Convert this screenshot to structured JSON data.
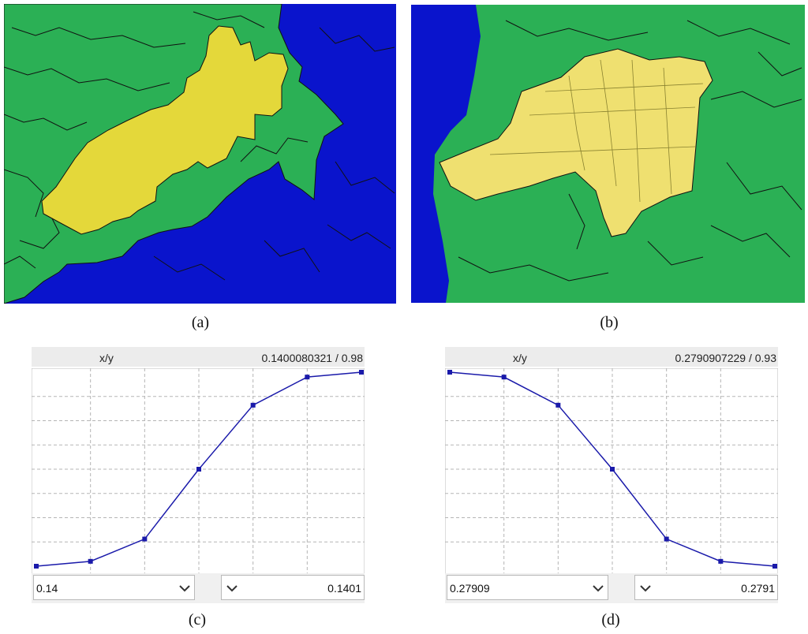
{
  "captions": {
    "a": "(a)",
    "b": "(b)",
    "c": "(c)",
    "d": "(d)"
  },
  "colors": {
    "water": "#0a14cc",
    "land": "#2bb055",
    "selected": "#e4d83a",
    "selected_b": "#efe070",
    "curve": "#1a1aaa"
  },
  "panel_c": {
    "header_label": "x/y",
    "header_value": "0.1400080321 / 0.98",
    "combo_left": "0.14",
    "combo_right": "0.1401",
    "curve_values": [
      0.0,
      0.025,
      0.14,
      0.5,
      0.83,
      0.975,
      1.0
    ]
  },
  "panel_d": {
    "header_label": "x/y",
    "header_value": "0.2790907229 / 0.93",
    "combo_left": "0.27909",
    "combo_right": "0.2791",
    "curve_values": [
      1.0,
      0.975,
      0.83,
      0.5,
      0.14,
      0.025,
      0.0
    ]
  }
}
